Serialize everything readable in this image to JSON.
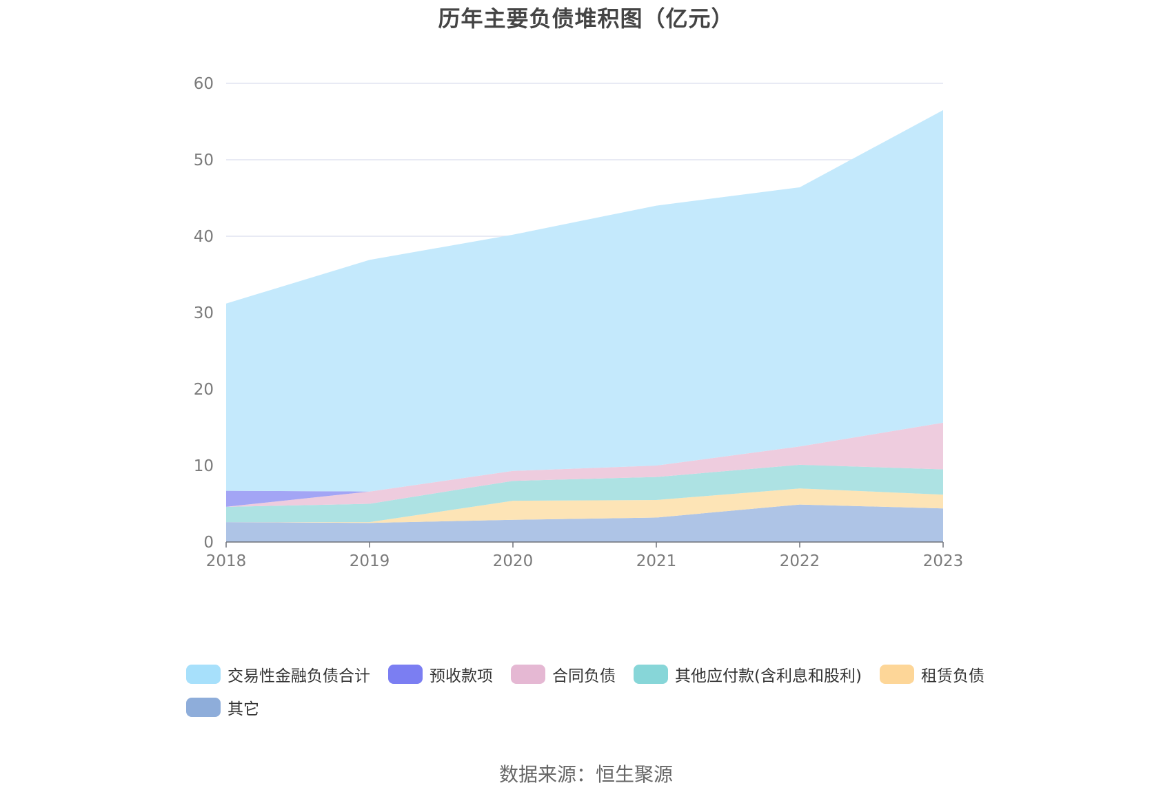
{
  "chart_data": {
    "type": "area",
    "stacked": true,
    "title": "历年主要负债堆积图（亿元）",
    "categories": [
      "2018",
      "2019",
      "2020",
      "2021",
      "2022",
      "2023"
    ],
    "ylim": [
      0,
      60
    ],
    "yticks": [
      "0",
      "10",
      "20",
      "30",
      "40",
      "50",
      "60"
    ],
    "grid": true,
    "legend_position": "bottom",
    "series": [
      {
        "name": "其它",
        "color": "#aec4e6",
        "legend_color": "#8eadda",
        "values": [
          2.6,
          2.5,
          2.9,
          3.2,
          4.9,
          4.4
        ]
      },
      {
        "name": "租赁负债",
        "color": "#fde4b6",
        "legend_color": "#fdd698",
        "values": [
          0,
          0.1,
          2.5,
          2.3,
          2.1,
          1.8
        ]
      },
      {
        "name": "其他应付款(含利息和股利)",
        "color": "#ade2e3",
        "legend_color": "#87d6d8",
        "values": [
          2.0,
          2.4,
          2.6,
          3.0,
          3.1,
          3.3
        ]
      },
      {
        "name": "合同负债",
        "color": "#eeccde",
        "legend_color": "#e5b8d3",
        "values": [
          0,
          1.6,
          1.3,
          1.5,
          2.4,
          6.1
        ]
      },
      {
        "name": "预收款项",
        "color": "#a3a5f5",
        "legend_color": "#7b7ef2",
        "values": [
          2.1,
          0,
          0,
          0,
          0,
          0
        ]
      },
      {
        "name": "交易性金融负债合计",
        "color": "#c4e9fc",
        "legend_color": "#a7e0fb",
        "values": [
          24.5,
          30.3,
          30.9,
          34.0,
          33.9,
          40.9
        ]
      }
    ],
    "legend_order": [
      "交易性金融负债合计",
      "预收款项",
      "合同负债",
      "其他应付款(含利息和股利)",
      "租赁负债",
      "其它"
    ]
  },
  "source_text": "数据来源：恒生聚源"
}
